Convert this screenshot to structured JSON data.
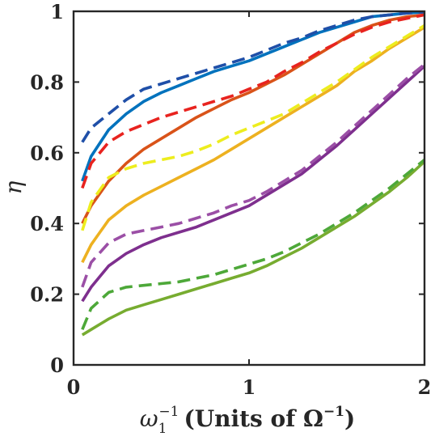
{
  "chart_data": {
    "type": "line",
    "title": "",
    "ylabel": "η",
    "xlabel": {
      "prefix": "ω",
      "sub": "1",
      "sup": "−1",
      "paren_text": "(Units of Ω",
      "paren_sup": "−1",
      "paren_close": ")"
    },
    "xlim": [
      0,
      2
    ],
    "ylim": [
      0,
      1
    ],
    "xticks": [
      0,
      1,
      2
    ],
    "xtick_labels": [
      "0",
      "1",
      "2"
    ],
    "yticks": [
      0,
      0.2,
      0.4,
      0.6,
      0.8,
      1
    ],
    "ytick_labels": [
      "0",
      "0.2",
      "0.4",
      "0.6",
      "0.8",
      "1"
    ],
    "grid": false,
    "x": [
      0.05,
      0.1,
      0.2,
      0.3,
      0.4,
      0.5,
      0.6,
      0.7,
      0.8,
      0.9,
      1.0,
      1.1,
      1.2,
      1.3,
      1.4,
      1.5,
      1.6,
      1.7,
      1.8,
      1.9,
      2.0
    ],
    "series": [
      {
        "color": "#0072bd",
        "style": "solid",
        "values": [
          0.52,
          0.59,
          0.665,
          0.71,
          0.745,
          0.77,
          0.79,
          0.81,
          0.83,
          0.845,
          0.86,
          0.88,
          0.9,
          0.92,
          0.94,
          0.955,
          0.97,
          0.985,
          0.99,
          0.995,
          0.998
        ]
      },
      {
        "color": "#1f4fa8",
        "style": "dashed",
        "values": [
          0.63,
          0.67,
          0.71,
          0.75,
          0.78,
          0.795,
          0.81,
          0.825,
          0.84,
          0.855,
          0.87,
          0.89,
          0.91,
          0.925,
          0.945,
          0.96,
          0.975,
          0.985,
          0.99,
          0.995,
          0.998
        ]
      },
      {
        "color": "#d95319",
        "style": "solid",
        "values": [
          0.4,
          0.45,
          0.52,
          0.57,
          0.61,
          0.64,
          0.67,
          0.7,
          0.725,
          0.75,
          0.77,
          0.795,
          0.82,
          0.85,
          0.88,
          0.91,
          0.94,
          0.96,
          0.975,
          0.985,
          0.99
        ]
      },
      {
        "color": "#e8231f",
        "style": "dashed",
        "values": [
          0.5,
          0.57,
          0.63,
          0.66,
          0.68,
          0.7,
          0.715,
          0.73,
          0.745,
          0.76,
          0.78,
          0.8,
          0.83,
          0.855,
          0.885,
          0.91,
          0.935,
          0.955,
          0.97,
          0.98,
          0.99
        ]
      },
      {
        "color": "#edb120",
        "style": "solid",
        "values": [
          0.29,
          0.34,
          0.41,
          0.45,
          0.48,
          0.505,
          0.53,
          0.555,
          0.58,
          0.61,
          0.64,
          0.67,
          0.7,
          0.73,
          0.76,
          0.79,
          0.83,
          0.86,
          0.895,
          0.925,
          0.955
        ]
      },
      {
        "color": "#eded1e",
        "style": "dashed",
        "values": [
          0.38,
          0.46,
          0.53,
          0.555,
          0.57,
          0.58,
          0.59,
          0.605,
          0.625,
          0.65,
          0.67,
          0.69,
          0.71,
          0.74,
          0.77,
          0.8,
          0.835,
          0.87,
          0.9,
          0.93,
          0.96
        ]
      },
      {
        "color": "#7e2f8e",
        "style": "solid",
        "values": [
          0.18,
          0.22,
          0.28,
          0.315,
          0.34,
          0.36,
          0.375,
          0.39,
          0.41,
          0.43,
          0.45,
          0.48,
          0.51,
          0.54,
          0.58,
          0.62,
          0.665,
          0.71,
          0.755,
          0.8,
          0.845
        ]
      },
      {
        "color": "#9b4fa6",
        "style": "dashed",
        "values": [
          0.22,
          0.29,
          0.345,
          0.37,
          0.38,
          0.39,
          0.4,
          0.415,
          0.43,
          0.45,
          0.465,
          0.49,
          0.52,
          0.55,
          0.59,
          0.63,
          0.675,
          0.72,
          0.765,
          0.81,
          0.85
        ]
      },
      {
        "color": "#77ac30",
        "style": "solid",
        "values": [
          0.085,
          0.1,
          0.13,
          0.155,
          0.17,
          0.185,
          0.2,
          0.215,
          0.23,
          0.245,
          0.26,
          0.28,
          0.305,
          0.33,
          0.36,
          0.39,
          0.42,
          0.455,
          0.49,
          0.53,
          0.575
        ]
      },
      {
        "color": "#4da839",
        "style": "dashed",
        "values": [
          0.1,
          0.16,
          0.205,
          0.22,
          0.225,
          0.23,
          0.235,
          0.245,
          0.255,
          0.27,
          0.285,
          0.3,
          0.32,
          0.345,
          0.37,
          0.4,
          0.43,
          0.465,
          0.5,
          0.54,
          0.58
        ]
      }
    ]
  }
}
